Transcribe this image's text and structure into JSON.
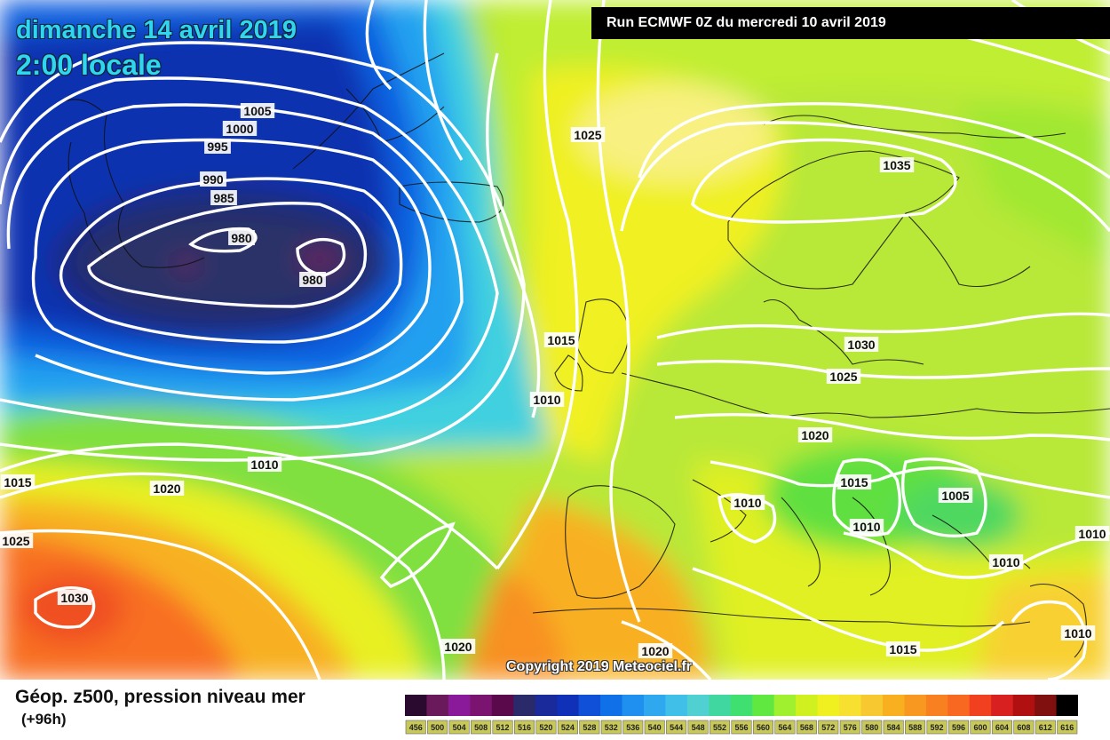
{
  "title": {
    "date": "dimanche 14 avril 2019",
    "time": "2:00 locale"
  },
  "run_info": "Run ECMWF 0Z du mercredi 10 avril 2019",
  "copyright": "Copyright 2019 Meteociel.fr",
  "legend": {
    "title": "Géop. z500, pression niveau mer",
    "subtitle": "(+96h)",
    "scale_values": [
      "456",
      "500",
      "504",
      "508",
      "512",
      "516",
      "520",
      "524",
      "528",
      "532",
      "536",
      "540",
      "544",
      "548",
      "552",
      "556",
      "560",
      "564",
      "568",
      "572",
      "576",
      "580",
      "584",
      "588",
      "592",
      "596",
      "600",
      "604",
      "608",
      "612",
      "616"
    ],
    "scale_colors": [
      "#2a0a2e",
      "#6a1a5a",
      "#8a1a9a",
      "#7a1470",
      "#5a0a4a",
      "#2a2a6a",
      "#1a2a9a",
      "#1030b8",
      "#1050d8",
      "#1070e8",
      "#2090f0",
      "#30a8f0",
      "#40c0e8",
      "#50d0d0",
      "#40d8a0",
      "#40e070",
      "#60e840",
      "#a0f030",
      "#d0f020",
      "#f0f020",
      "#f8e030",
      "#f8c830",
      "#f8b020",
      "#f89820",
      "#f88020",
      "#f86820",
      "#f04020",
      "#d82020",
      "#b01010",
      "#801010",
      "#000000"
    ]
  },
  "isobars": [
    {
      "label": "1005"
    },
    {
      "label": "1000"
    },
    {
      "label": "995"
    },
    {
      "label": "990"
    },
    {
      "label": "985"
    },
    {
      "label": "980"
    },
    {
      "label": "980"
    },
    {
      "label": "1025"
    },
    {
      "label": "1035"
    },
    {
      "label": "1015"
    },
    {
      "label": "1010"
    },
    {
      "label": "1030"
    },
    {
      "label": "1025"
    },
    {
      "label": "1020"
    },
    {
      "label": "1010"
    },
    {
      "label": "1015"
    },
    {
      "label": "1020"
    },
    {
      "label": "1015"
    },
    {
      "label": "1010"
    },
    {
      "label": "1005"
    },
    {
      "label": "1010"
    },
    {
      "label": "1010"
    },
    {
      "label": "1010"
    },
    {
      "label": "1025"
    },
    {
      "label": "1030"
    },
    {
      "label": "1020"
    },
    {
      "label": "1020"
    },
    {
      "label": "1015"
    },
    {
      "label": "1010"
    }
  ]
}
